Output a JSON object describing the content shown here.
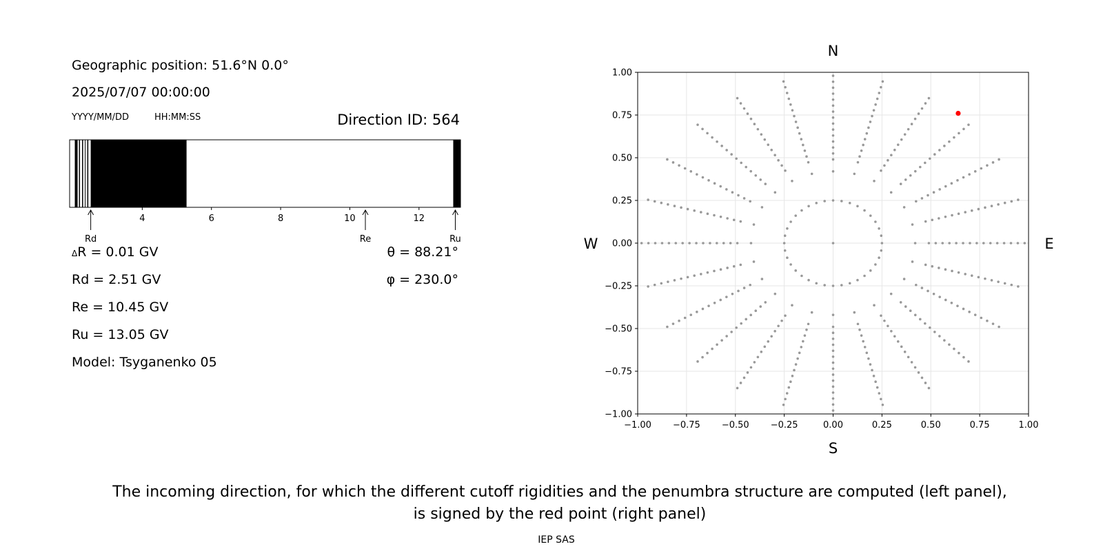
{
  "left_panel": {
    "geo_position": "Geographic position: 51.6°N 0.0°",
    "datetime": "2025/07/07 00:00:00",
    "date_format": "YYYY/MM/DD",
    "time_format": "HH:MM:SS",
    "direction_id": "Direction ID: 564",
    "delta_r": "R = 0.01 GV",
    "delta_symbol": "Δ",
    "rd": "Rd = 2.51 GV",
    "re": "Re = 10.45 GV",
    "ru": "Ru = 13.05 GV",
    "model": "Model: Tsyganenko 05",
    "theta": "θ = 88.21°",
    "phi": "φ = 230.0°"
  },
  "caption": {
    "line1": "The incoming direction, for which the different cutoff rigidities and the penumbra structure are computed (left panel),",
    "line2": "is signed by the red point (right panel)",
    "credit": "IEP SAS"
  },
  "chart_data": [
    {
      "type": "penumbra-bar",
      "xlim": [
        1.9,
        13.2
      ],
      "xticks": [
        4,
        6,
        8,
        10,
        12
      ],
      "allowed_color": "#ffffff",
      "forbidden_color": "#000000",
      "forbidden_bands": [
        [
          2.05,
          2.13
        ],
        [
          2.17,
          2.2
        ],
        [
          2.26,
          2.29
        ],
        [
          2.34,
          2.36
        ],
        [
          2.41,
          2.44
        ],
        [
          2.51,
          5.28
        ],
        [
          12.99,
          13.2
        ]
      ],
      "markers": [
        {
          "label": "Rd",
          "value": 2.51
        },
        {
          "label": "Re",
          "value": 10.45
        },
        {
          "label": "Ru",
          "value": 13.05
        }
      ]
    },
    {
      "type": "scatter",
      "xlim": [
        -1.0,
        1.0
      ],
      "ylim": [
        -1.0,
        1.0
      ],
      "xticks": [
        "−1.00",
        "−0.75",
        "−0.50",
        "−0.25",
        "0.00",
        "0.25",
        "0.50",
        "0.75",
        "1.00"
      ],
      "yticks": [
        "1.00",
        "0.75",
        "0.50",
        "0.25",
        "0.00",
        "−0.25",
        "−0.50",
        "−0.75",
        "−1.00"
      ],
      "grid": true,
      "compass": {
        "north": "N",
        "south": "S",
        "west": "W",
        "east": "E"
      },
      "grid_points": {
        "rings_r": [
          0.25,
          0.42
        ],
        "rings_n": [
          36,
          24
        ],
        "spokes_n": 24,
        "spokes_r_from": 0.49,
        "spokes_r_to": 1.0,
        "spokes_step": 0.035,
        "color": "#999999"
      },
      "selected_point": {
        "x": 0.64,
        "y": 0.76,
        "color": "#ff0000"
      }
    }
  ]
}
